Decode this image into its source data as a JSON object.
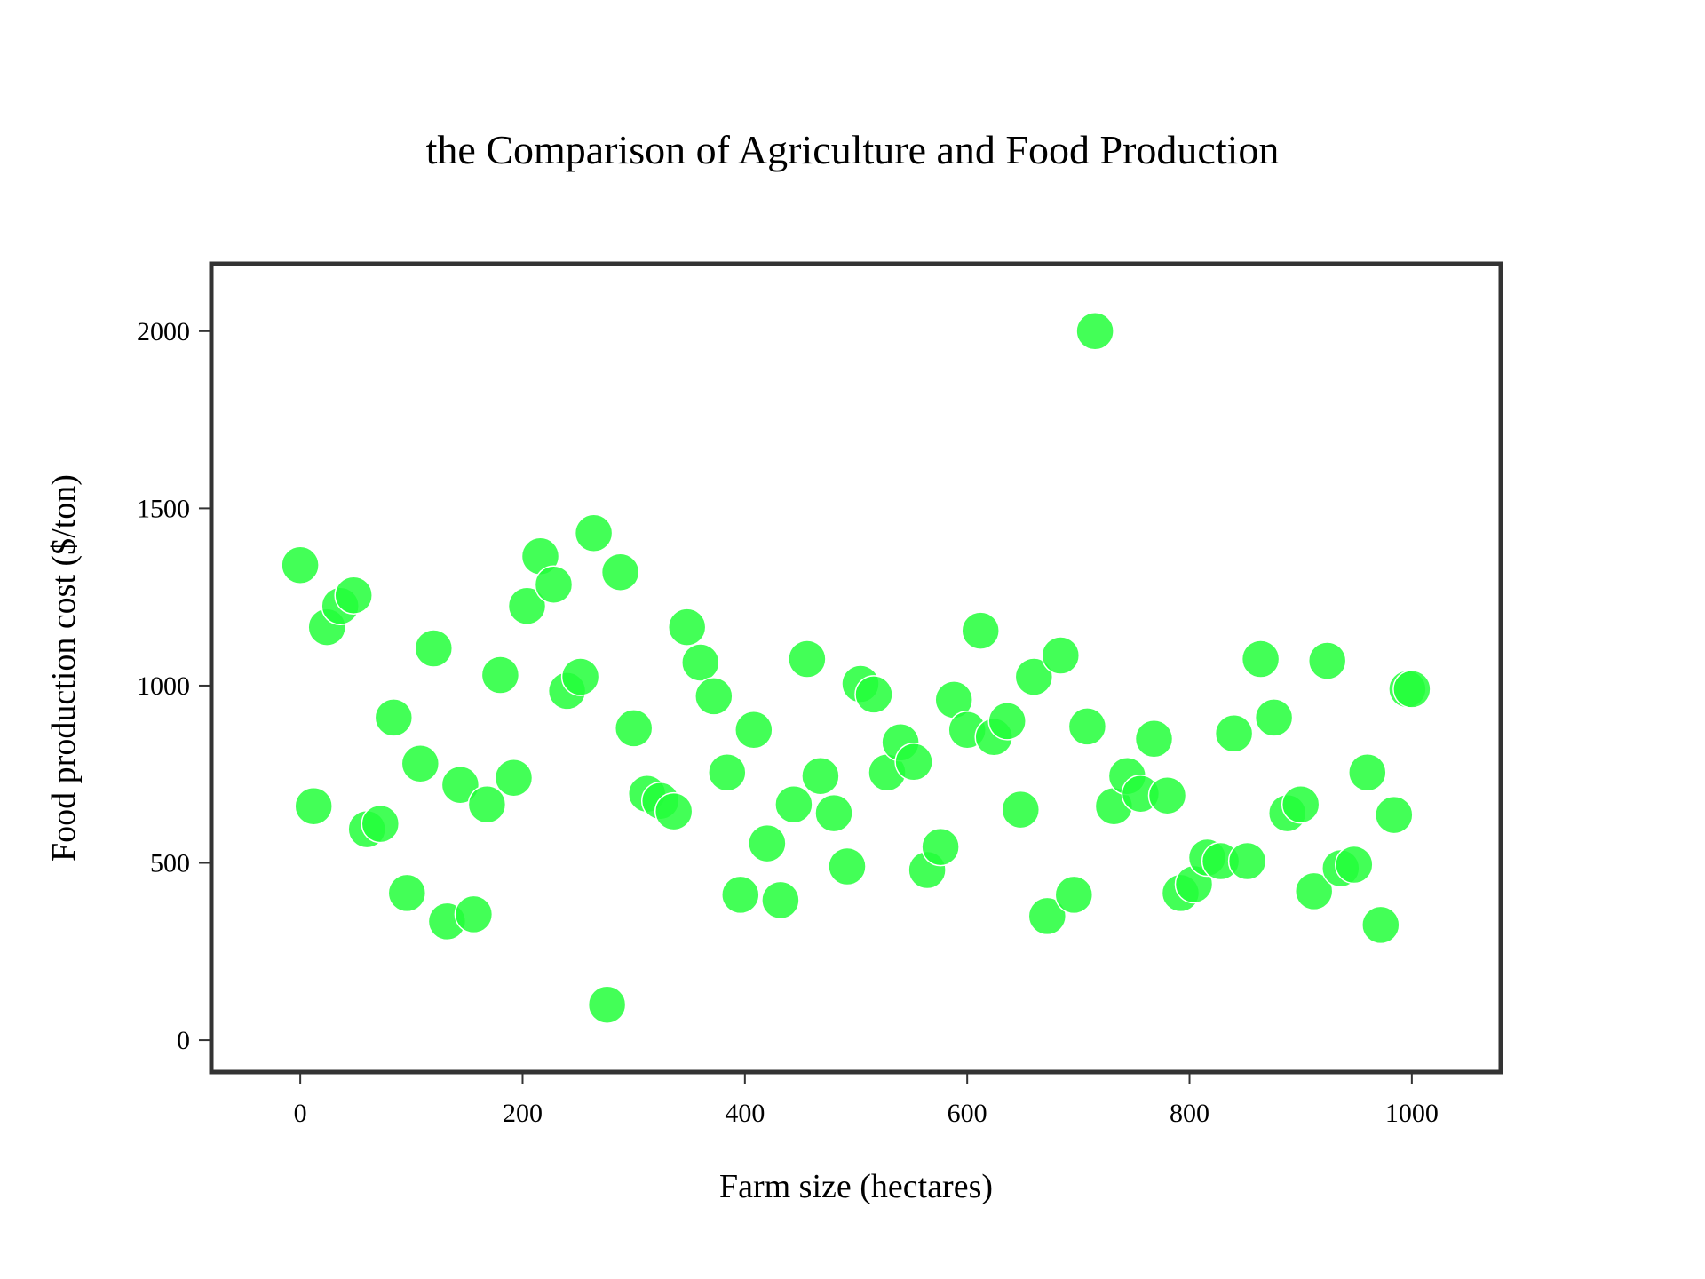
{
  "chart_data": {
    "type": "scatter",
    "title": "the Comparison of Agriculture and Food Production",
    "xlabel": "Farm size (hectares)",
    "ylabel": "Food production cost ($/ton)",
    "xlim": [
      -80,
      1080
    ],
    "ylim": [
      -90,
      2190
    ],
    "xticks": [
      0,
      200,
      400,
      600,
      800,
      1000
    ],
    "yticks": [
      0,
      500,
      1000,
      1500,
      2000
    ],
    "xtick_labels": [
      "0",
      "200",
      "400",
      "600",
      "800",
      "1000"
    ],
    "ytick_labels": [
      "0",
      "500",
      "1000",
      "1500",
      "2000"
    ],
    "grid": false,
    "legend": "none",
    "marker_color": "#22ff3a",
    "axes_color": "#333333",
    "series": [
      {
        "x": [
          0,
          12,
          24,
          36,
          48,
          60,
          72,
          84,
          96,
          108,
          120,
          132,
          144,
          156,
          168,
          180,
          192,
          204,
          216,
          228,
          240,
          252,
          264,
          276,
          288,
          300,
          312,
          324,
          336,
          348,
          360,
          372,
          384,
          396,
          408,
          420,
          432,
          444,
          456,
          468,
          480,
          492,
          504,
          516,
          528,
          540,
          552,
          564,
          576,
          588,
          600,
          612,
          624,
          636,
          648,
          660,
          672,
          684,
          696,
          708,
          715,
          732,
          744,
          756,
          768,
          780,
          792,
          804,
          816,
          828,
          840,
          852,
          864,
          876,
          888,
          900,
          912,
          924,
          936,
          948,
          960,
          972,
          984,
          996,
          1000
        ],
        "y": [
          1340,
          660,
          1165,
          1225,
          1255,
          595,
          610,
          910,
          415,
          780,
          1105,
          335,
          720,
          355,
          665,
          1030,
          740,
          1225,
          1365,
          1285,
          985,
          1025,
          1430,
          100,
          1320,
          880,
          695,
          675,
          645,
          1165,
          1065,
          970,
          755,
          410,
          875,
          555,
          395,
          665,
          1075,
          745,
          640,
          490,
          1005,
          975,
          755,
          840,
          785,
          480,
          545,
          960,
          875,
          1155,
          855,
          900,
          650,
          1025,
          350,
          1085,
          410,
          885,
          2000,
          660,
          745,
          695,
          850,
          690,
          415,
          440,
          515,
          505,
          865,
          505,
          1075,
          910,
          640,
          665,
          420,
          1070,
          485,
          495,
          755,
          325,
          635,
          990,
          990
        ]
      }
    ]
  }
}
